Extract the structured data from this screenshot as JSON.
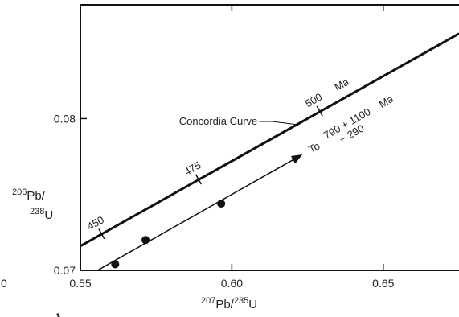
{
  "chart_data": {
    "type": "line",
    "title": "",
    "xlabel": {
      "mass": "207",
      "main": "Pb/",
      "mass2": "235",
      "main2": "U"
    },
    "ylabel": {
      "mass": "206",
      "main": "Pb/",
      "mass2": "238",
      "main2": "U"
    },
    "xlim": [
      0.55,
      0.675
    ],
    "ylim": [
      0.07,
      0.0875
    ],
    "x_ticks": [
      {
        "value": 0.55,
        "label": "0.55"
      },
      {
        "value": 0.6,
        "label": "0.60"
      },
      {
        "value": 0.65,
        "label": "0.65"
      }
    ],
    "y_ticks": [
      {
        "value": 0.07,
        "label": "0.07"
      },
      {
        "value": 0.08,
        "label": "0.08"
      }
    ],
    "grid": false,
    "concordia": {
      "label": "Concordia Curve",
      "points": [
        [
          0.55,
          0.0716
        ],
        [
          0.675,
          0.0856
        ]
      ],
      "age_marks": [
        {
          "label": "450",
          "x": 0.557,
          "y": 0.0724
        },
        {
          "label": "475",
          "x": 0.589,
          "y": 0.076
        },
        {
          "label": "500",
          "x": 0.629,
          "y": 0.0805
        }
      ],
      "age_unit": "Ma",
      "label_anchor": [
        0.622,
        0.0796
      ]
    },
    "discordia": {
      "label_prefix": "To",
      "upper_age": "790 + 1100",
      "lower_age": "    − 290",
      "unit": "Ma",
      "line_start": [
        0.553,
        0.0697
      ],
      "arrow_end": [
        0.623,
        0.0776
      ]
    },
    "data_points": [
      {
        "x": 0.5615,
        "y": 0.0704
      },
      {
        "x": 0.5715,
        "y": 0.072
      },
      {
        "x": 0.5965,
        "y": 0.0744
      }
    ],
    "edge_label": "0"
  }
}
